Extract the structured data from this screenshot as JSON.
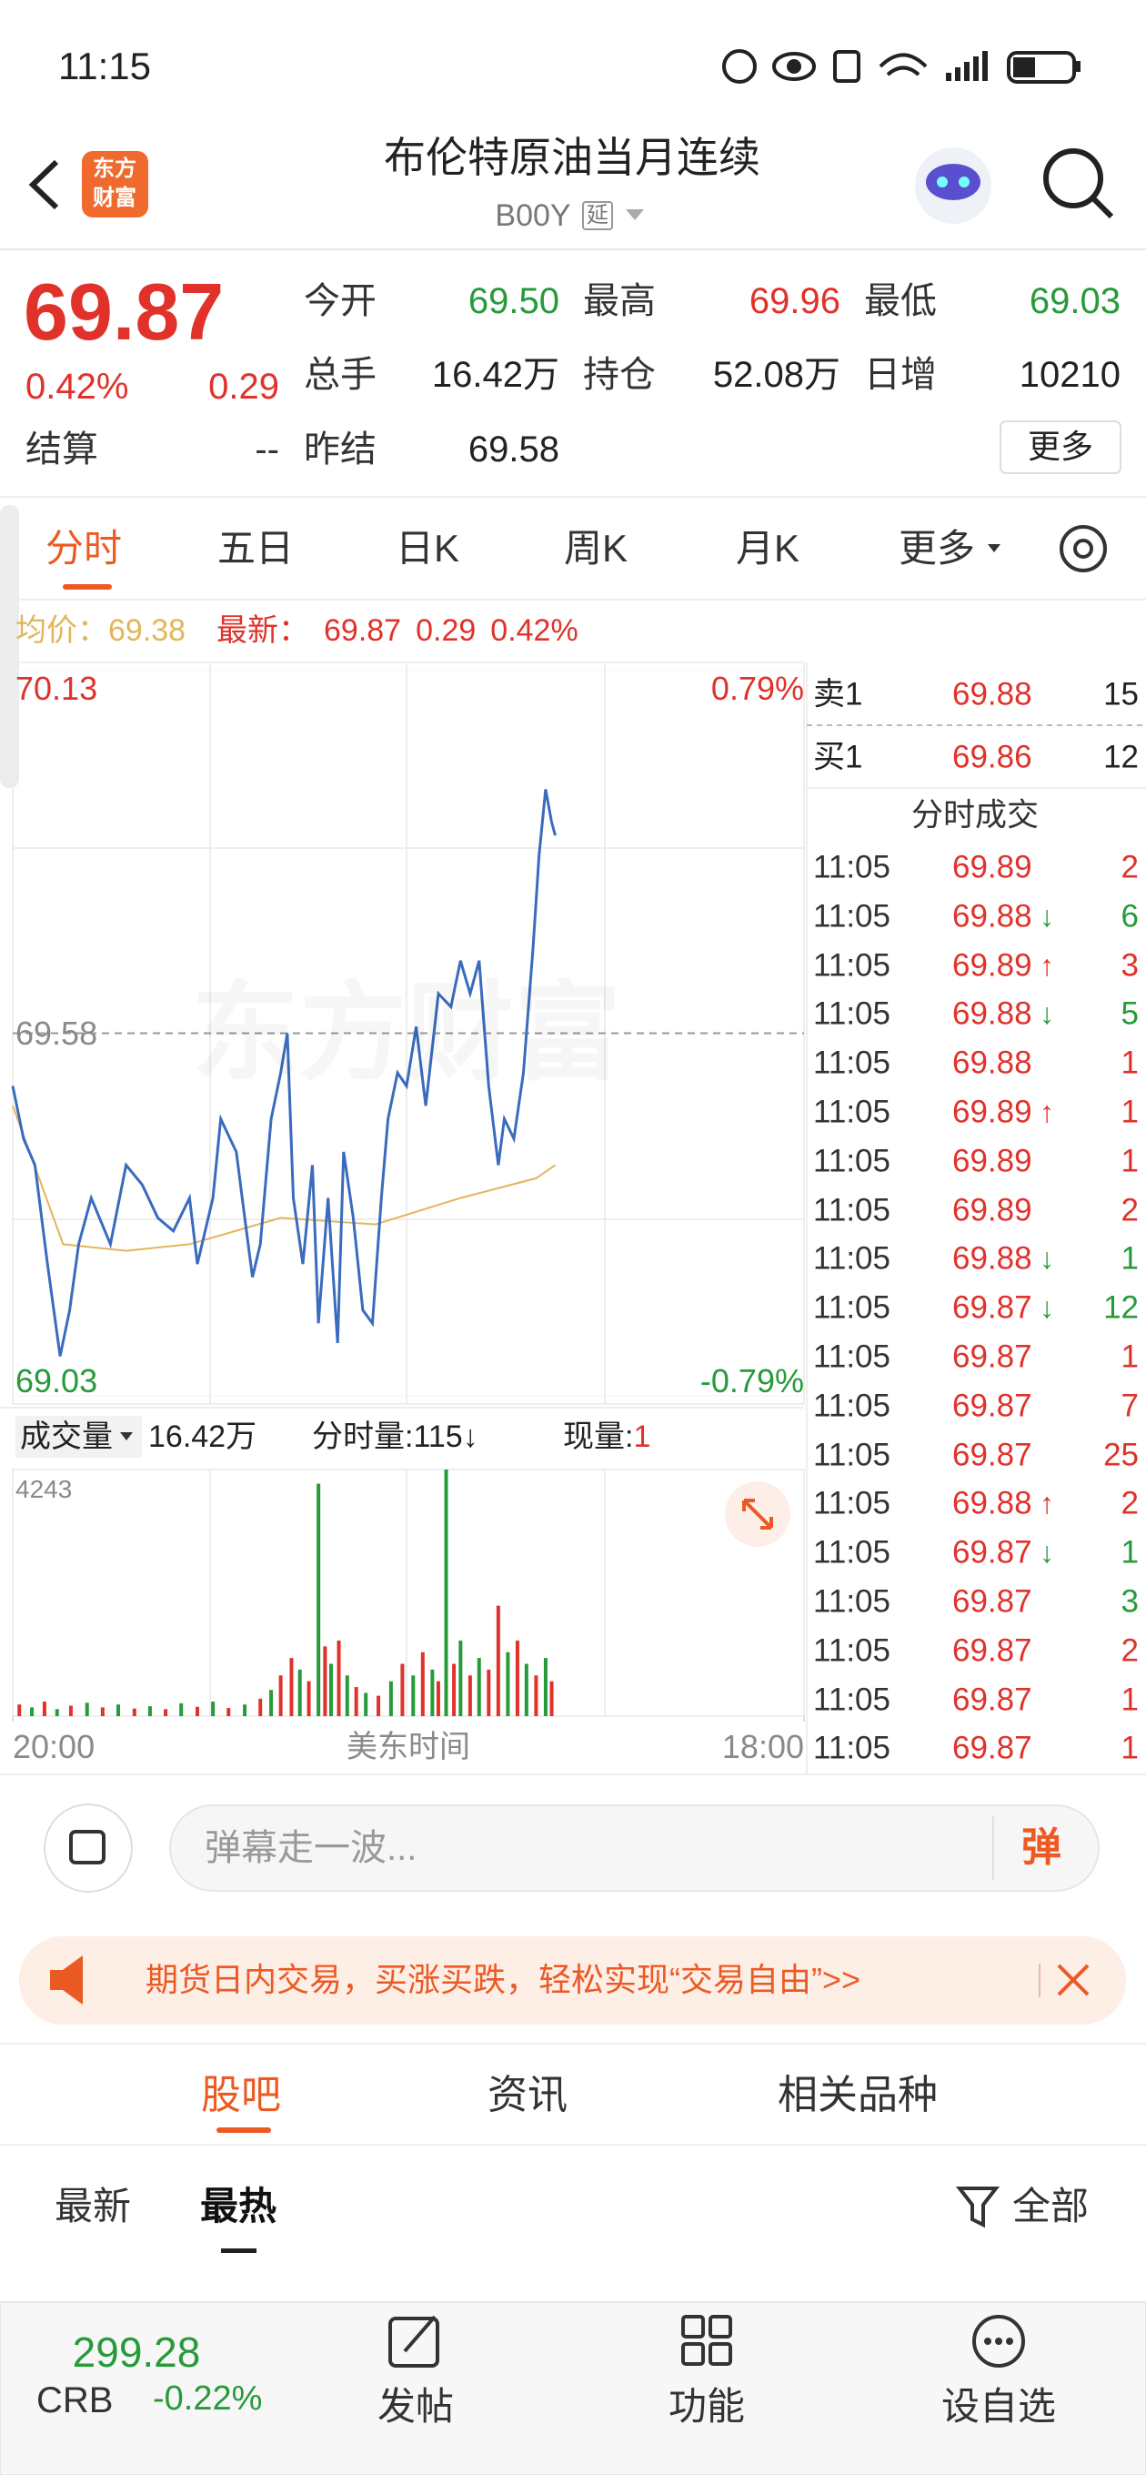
{
  "theme": {
    "up": "#e0322b",
    "down": "#279a3a",
    "accent": "#ec5a24",
    "avg": "#e2b65a",
    "line": "#3a6bbd",
    "text": "#222222",
    "muted": "#8a8a8a"
  },
  "status_bar": {
    "time": "11:15"
  },
  "header": {
    "logo_top": "东方",
    "logo_bottom": "财富",
    "title": "布伦特原油当月连续",
    "code": "B00Y",
    "tag": "延"
  },
  "quote": {
    "price": "69.87",
    "change_pct": "0.42%",
    "change": "0.29",
    "settle_label": "结算",
    "settle": "--",
    "fields": [
      {
        "label": "今开",
        "value": "69.50",
        "color": "#279a3a"
      },
      {
        "label": "最高",
        "value": "69.96",
        "color": "#e0322b"
      },
      {
        "label": "最低",
        "value": "69.03",
        "color": "#279a3a"
      },
      {
        "label": "总手",
        "value": "16.42万",
        "color": "#222222"
      },
      {
        "label": "持仓",
        "value": "52.08万",
        "color": "#222222"
      },
      {
        "label": "日增",
        "value": "10210",
        "color": "#222222"
      },
      {
        "label": "昨结",
        "value": "69.58",
        "color": "#222222"
      }
    ],
    "more": "更多"
  },
  "tabs": [
    "分时",
    "五日",
    "日K",
    "周K",
    "月K",
    "更多"
  ],
  "info": {
    "avg_label": "均价：",
    "avg": "69.38",
    "latest_label": "最新：",
    "latest": "69.87",
    "change": "0.29",
    "change_pct": "0.42%"
  },
  "chart_data": [
    {
      "type": "line",
      "watermark": "东方财富",
      "xlim": [
        0,
        1320
      ],
      "ylim": [
        69.03,
        70.13
      ],
      "yticks": [
        70.13,
        69.58,
        69.03
      ],
      "y2lim": [
        -0.79,
        0.79
      ],
      "y2ticks": [
        {
          "value": 0.79,
          "label": "0.79%"
        },
        {
          "value": -0.79,
          "label": "-0.79%"
        }
      ],
      "series": [
        {
          "color": "#3a6bbd",
          "x": [
            0,
            18,
            37,
            58,
            79,
            95,
            110,
            131,
            163,
            189,
            216,
            242,
            268,
            295,
            308,
            334,
            347,
            373,
            387,
            400,
            413,
            431,
            447,
            458,
            468,
            484,
            500,
            510,
            526,
            542,
            552,
            568,
            584,
            600,
            615,
            626,
            642,
            657,
            673,
            689,
            710,
            731,
            747,
            763,
            778,
            794,
            810,
            820,
            836,
            852,
            868,
            878,
            889,
            899,
            905
          ],
          "values": [
            69.5,
            69.42,
            69.38,
            69.23,
            69.09,
            69.16,
            69.26,
            69.33,
            69.26,
            69.38,
            69.35,
            69.3,
            69.28,
            69.33,
            69.23,
            69.33,
            69.45,
            69.4,
            69.3,
            69.21,
            69.26,
            69.45,
            69.52,
            69.58,
            69.33,
            69.23,
            69.38,
            69.14,
            69.33,
            69.11,
            69.4,
            69.3,
            69.16,
            69.14,
            69.33,
            69.45,
            69.52,
            69.5,
            69.59,
            69.47,
            69.64,
            69.62,
            69.69,
            69.64,
            69.69,
            69.5,
            69.38,
            69.45,
            69.42,
            69.52,
            69.71,
            69.85,
            69.95,
            69.9,
            69.88
          ]
        },
        {
          "color": "#e2b65a",
          "x": [
            0,
            84,
            189,
            295,
            447,
            605,
            747,
            873,
            905
          ],
          "values": [
            69.47,
            69.26,
            69.25,
            69.26,
            69.3,
            69.29,
            69.33,
            69.36,
            69.38
          ]
        }
      ]
    },
    {
      "type": "bar",
      "xlim": [
        0,
        1320
      ],
      "ylim": [
        0,
        4243
      ],
      "yticks": [
        4243
      ],
      "xticks": [
        {
          "value": 0,
          "label": "20:00"
        },
        {
          "value": 1320,
          "label": "18:00"
        }
      ],
      "xlabel": "美东时间",
      "x": [
        11,
        32,
        53,
        74,
        97,
        124,
        150,
        176,
        203,
        229,
        255,
        281,
        308,
        334,
        360,
        387,
        413,
        431,
        447,
        465,
        479,
        494,
        510,
        521,
        531,
        544,
        558,
        573,
        589,
        610,
        631,
        650,
        668,
        684,
        700,
        710,
        723,
        736,
        747,
        763,
        778,
        794,
        810,
        826,
        842,
        857,
        873,
        889,
        899
      ],
      "values": [
        200,
        150,
        250,
        120,
        180,
        230,
        150,
        200,
        130,
        170,
        120,
        220,
        160,
        250,
        140,
        200,
        300,
        450,
        700,
        1000,
        800,
        600,
        4000,
        1200,
        900,
        1300,
        700,
        500,
        400,
        350,
        600,
        900,
        700,
        1100,
        800,
        600,
        4243,
        900,
        1300,
        700,
        1000,
        800,
        1900,
        1100,
        1300,
        900,
        700,
        1000,
        600
      ],
      "colors": [
        "#e0322b",
        "#279a3a",
        "#e0322b",
        "#279a3a",
        "#e0322b",
        "#279a3a",
        "#e0322b",
        "#279a3a",
        "#e0322b",
        "#279a3a",
        "#e0322b",
        "#279a3a",
        "#e0322b",
        "#279a3a",
        "#e0322b",
        "#279a3a",
        "#e0322b",
        "#279a3a",
        "#e0322b",
        "#e0322b",
        "#279a3a",
        "#e0322b",
        "#279a3a",
        "#e0322b",
        "#279a3a",
        "#e0322b",
        "#279a3a",
        "#e0322b",
        "#279a3a",
        "#e0322b",
        "#279a3a",
        "#e0322b",
        "#279a3a",
        "#e0322b",
        "#279a3a",
        "#e0322b",
        "#279a3a",
        "#e0322b",
        "#279a3a",
        "#e0322b",
        "#279a3a",
        "#e0322b",
        "#e0322b",
        "#279a3a",
        "#e0322b",
        "#279a3a",
        "#e0322b",
        "#279a3a",
        "#e0322b"
      ]
    }
  ],
  "volume_header": {
    "label": "成交量",
    "total": "16.42万",
    "interval_label": "分时量:",
    "interval": "115",
    "interval_arrow": "↓",
    "current_label": "现量:",
    "current": "1"
  },
  "order_book": {
    "rows": [
      {
        "side": "卖1",
        "price": "69.88",
        "volume": "15"
      },
      {
        "side": "买1",
        "price": "69.86",
        "volume": "12"
      }
    ],
    "trades_title": "分时成交",
    "trades": [
      {
        "time": "11:05",
        "price": "69.89",
        "volume": "2",
        "volume_color": "#e0322b"
      },
      {
        "time": "11:05",
        "price": "69.88",
        "arrow": "↓",
        "arrow_color": "#279a3a",
        "volume": "6",
        "volume_color": "#279a3a"
      },
      {
        "time": "11:05",
        "price": "69.89",
        "arrow": "↑",
        "arrow_color": "#e0322b",
        "volume": "3",
        "volume_color": "#e0322b"
      },
      {
        "time": "11:05",
        "price": "69.88",
        "arrow": "↓",
        "arrow_color": "#279a3a",
        "volume": "5",
        "volume_color": "#279a3a"
      },
      {
        "time": "11:05",
        "price": "69.88",
        "volume": "1",
        "volume_color": "#e0322b"
      },
      {
        "time": "11:05",
        "price": "69.89",
        "arrow": "↑",
        "arrow_color": "#e0322b",
        "volume": "1",
        "volume_color": "#e0322b"
      },
      {
        "time": "11:05",
        "price": "69.89",
        "volume": "1",
        "volume_color": "#e0322b"
      },
      {
        "time": "11:05",
        "price": "69.89",
        "volume": "2",
        "volume_color": "#e0322b"
      },
      {
        "time": "11:05",
        "price": "69.88",
        "arrow": "↓",
        "arrow_color": "#279a3a",
        "volume": "1",
        "volume_color": "#279a3a"
      },
      {
        "time": "11:05",
        "price": "69.87",
        "arrow": "↓",
        "arrow_color": "#279a3a",
        "volume": "12",
        "volume_color": "#279a3a"
      },
      {
        "time": "11:05",
        "price": "69.87",
        "volume": "1",
        "volume_color": "#e0322b"
      },
      {
        "time": "11:05",
        "price": "69.87",
        "volume": "7",
        "volume_color": "#e0322b"
      },
      {
        "time": "11:05",
        "price": "69.87",
        "volume": "25",
        "volume_color": "#e0322b"
      },
      {
        "time": "11:05",
        "price": "69.88",
        "arrow": "↑",
        "arrow_color": "#e0322b",
        "volume": "2",
        "volume_color": "#e0322b"
      },
      {
        "time": "11:05",
        "price": "69.87",
        "arrow": "↓",
        "arrow_color": "#279a3a",
        "volume": "1",
        "volume_color": "#279a3a"
      },
      {
        "time": "11:05",
        "price": "69.87",
        "volume": "3",
        "volume_color": "#279a3a"
      },
      {
        "time": "11:05",
        "price": "69.87",
        "volume": "2",
        "volume_color": "#e0322b"
      },
      {
        "time": "11:05",
        "price": "69.87",
        "volume": "1",
        "volume_color": "#e0322b"
      },
      {
        "time": "11:05",
        "price": "69.87",
        "volume": "1",
        "volume_color": "#e0322b"
      }
    ]
  },
  "comment_bar": {
    "placeholder": "弹幕走一波...",
    "button": "弹"
  },
  "banner": {
    "text": "期货日内交易，买涨买跌，轻松实现“交易自由”>>"
  },
  "section_tabs": [
    "股吧",
    "资讯",
    "相关品种"
  ],
  "sub_tabs": [
    "最新",
    "最热"
  ],
  "filter": "全部",
  "bottom_nav": {
    "index_value": "299.28",
    "index_name": "CRB",
    "index_change": "-0.22%",
    "items": [
      "发帖",
      "功能",
      "设自选"
    ]
  }
}
